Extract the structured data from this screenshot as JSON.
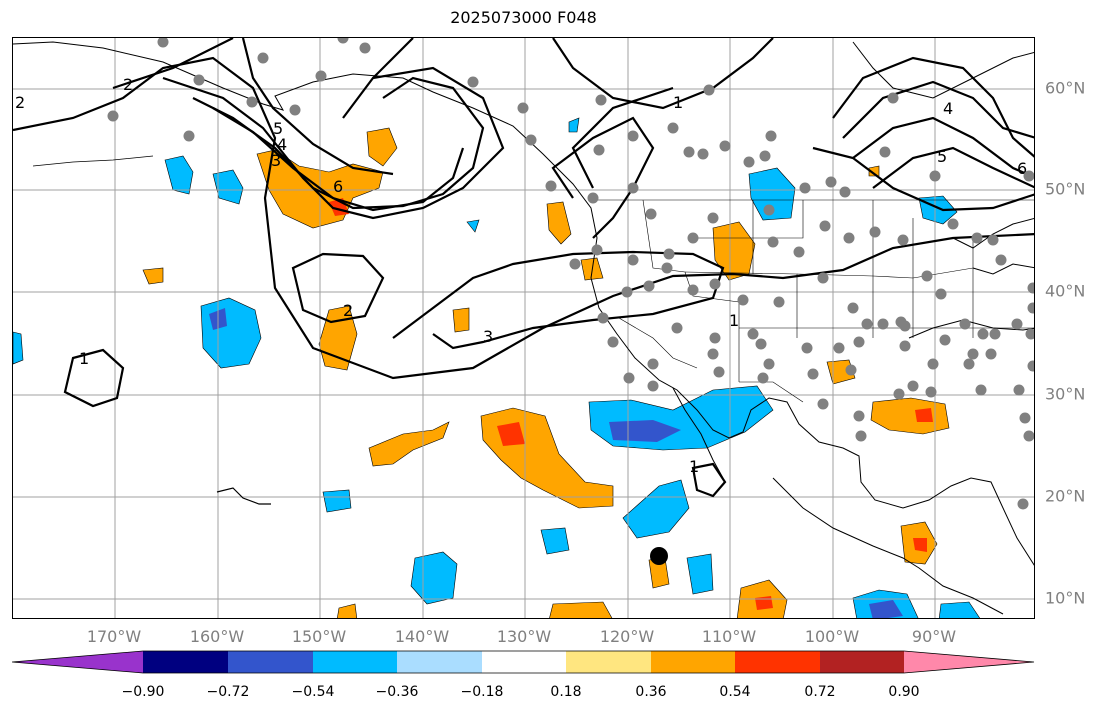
{
  "title": "2025073000 F048",
  "lon_labels": [
    "170°W",
    "160°W",
    "150°W",
    "140°W",
    "130°W",
    "120°W",
    "110°W",
    "100°W",
    "90°W"
  ],
  "lat_labels": [
    "60°N",
    "50°N",
    "40°N",
    "30°N",
    "20°N",
    "10°N"
  ],
  "contour_labels": [
    "2",
    "2",
    "1",
    "3",
    "4",
    "5",
    "6",
    "2",
    "3",
    "1",
    "1",
    "4",
    "5",
    "6",
    "1"
  ],
  "colorbar": {
    "colors": [
      "#9933cc",
      "#000080",
      "#3355cc",
      "#00bbff",
      "#aaddff",
      "#ffffff",
      "#ffe680",
      "#ffa500",
      "#ff3300",
      "#b22222",
      "#ff88aa"
    ],
    "ticks": [
      "−0.90",
      "−0.72",
      "−0.54",
      "−0.36",
      "−0.18",
      "0.18",
      "0.36",
      "0.54",
      "0.72",
      "0.90"
    ]
  },
  "colors": {
    "grid": "#a0a0a0",
    "coast": "#000000",
    "station_dot": "#808080",
    "storm_marker": "#000000"
  }
}
